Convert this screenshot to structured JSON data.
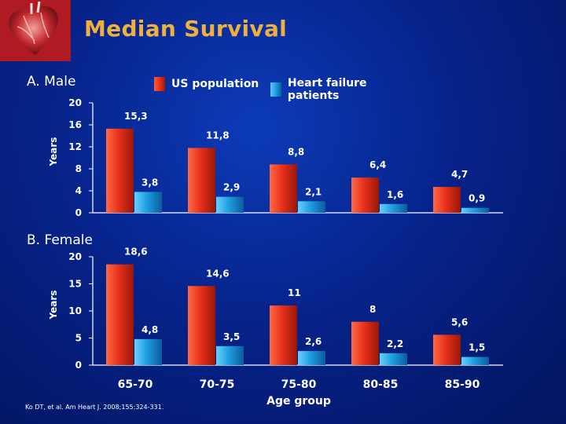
{
  "title": "Median Survival",
  "legend": {
    "us": {
      "label": "US population",
      "color": "#e8321c"
    },
    "hf": {
      "label": "Heart failure patients",
      "color": "#1e9fe0"
    }
  },
  "citation": "Ko DT, et al. Am Heart J. 2008;155:324-331.",
  "chart_data": [
    {
      "type": "bar",
      "panel_label": "A.  Male",
      "ylabel": "Years",
      "ylim": [
        0,
        20
      ],
      "yticks": [
        0,
        4,
        8,
        12,
        16,
        20
      ],
      "categories": [
        "65-70",
        "70-75",
        "75-80",
        "80-85",
        "85-90"
      ],
      "series": [
        {
          "name": "US population",
          "values": [
            15.3,
            11.8,
            8.8,
            6.4,
            4.7
          ],
          "labels": [
            "15,3",
            "11,8",
            "8,8",
            "6,4",
            "4,7"
          ]
        },
        {
          "name": "Heart failure patients",
          "values": [
            3.8,
            2.9,
            2.1,
            1.6,
            0.9
          ],
          "labels": [
            "3,8",
            "2,9",
            "2,1",
            "1,6",
            "0,9"
          ]
        }
      ]
    },
    {
      "type": "bar",
      "panel_label": "B.  Female",
      "ylabel": "Years",
      "xlabel": "Age group",
      "ylim": [
        0,
        20
      ],
      "yticks": [
        0,
        5,
        10,
        15,
        20
      ],
      "categories": [
        "65-70",
        "70-75",
        "75-80",
        "80-85",
        "85-90"
      ],
      "series": [
        {
          "name": "US population",
          "values": [
            18.6,
            14.6,
            11,
            8,
            5.6
          ],
          "labels": [
            "18,6",
            "14,6",
            "11",
            "8",
            "5,6"
          ]
        },
        {
          "name": "Heart failure patients",
          "values": [
            4.8,
            3.5,
            2.6,
            2.2,
            1.5
          ],
          "labels": [
            "4,8",
            "3,5",
            "2,6",
            "2,2",
            "1,5"
          ]
        }
      ]
    }
  ]
}
